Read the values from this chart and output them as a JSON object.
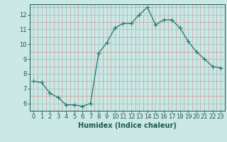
{
  "x": [
    0,
    1,
    2,
    3,
    4,
    5,
    6,
    7,
    8,
    9,
    10,
    11,
    12,
    13,
    14,
    15,
    16,
    17,
    18,
    19,
    20,
    21,
    22,
    23
  ],
  "y": [
    7.5,
    7.4,
    6.7,
    6.4,
    5.9,
    5.9,
    5.8,
    6.0,
    9.4,
    10.1,
    11.1,
    11.4,
    11.4,
    12.0,
    12.5,
    11.3,
    11.65,
    11.65,
    11.1,
    10.2,
    9.5,
    9.0,
    8.5,
    8.4
  ],
  "line_color": "#1a7a6e",
  "marker": "+",
  "marker_size": 4,
  "bg_color": "#cce8e4",
  "grid_major_color": "#aacccc",
  "grid_minor_color": "#cc9999",
  "xlabel": "Humidex (Indice chaleur)",
  "xlim": [
    -0.5,
    23.5
  ],
  "ylim": [
    5.5,
    12.7
  ],
  "yticks": [
    6,
    7,
    8,
    9,
    10,
    11,
    12
  ],
  "xticks": [
    0,
    1,
    2,
    3,
    4,
    5,
    6,
    7,
    8,
    9,
    10,
    11,
    12,
    13,
    14,
    15,
    16,
    17,
    18,
    19,
    20,
    21,
    22,
    23
  ],
  "tick_color": "#1a5a54",
  "xlabel_fontsize": 7,
  "tick_fontsize": 6
}
